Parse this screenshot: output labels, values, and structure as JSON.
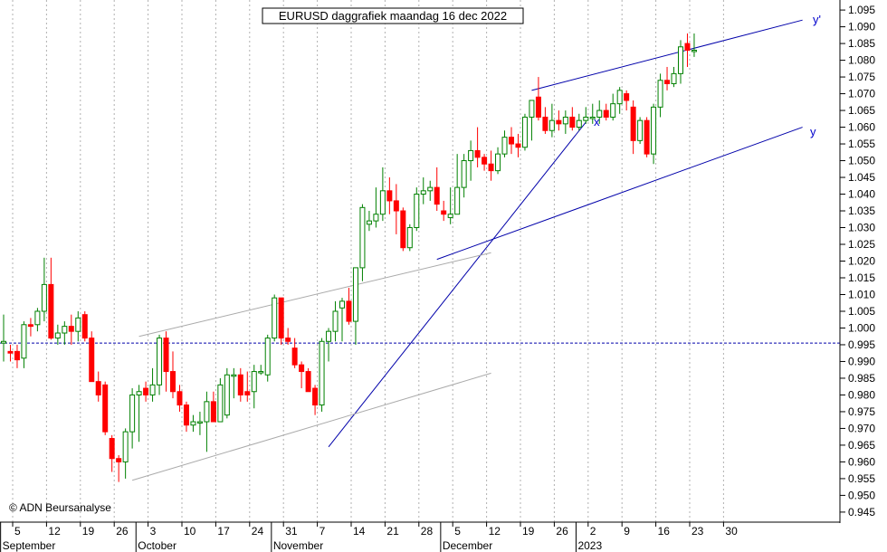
{
  "chart_data": {
    "type": "candlestick",
    "title": "EURUSD daggrafiek maandag 16 dec 2022",
    "copyright": "© ADN Beursanalyse",
    "y_axis": {
      "position": "right",
      "ylim": [
        0.942,
        1.098
      ],
      "ticks": [
        0.945,
        0.95,
        0.955,
        0.96,
        0.965,
        0.97,
        0.975,
        0.98,
        0.985,
        0.99,
        0.995,
        1.0,
        1.005,
        1.01,
        1.015,
        1.02,
        1.025,
        1.03,
        1.035,
        1.04,
        1.045,
        1.05,
        1.055,
        1.06,
        1.065,
        1.07,
        1.075,
        1.08,
        1.085,
        1.09,
        1.095
      ],
      "tick_labels": [
        "0.945",
        "0.950",
        "0.955",
        "0.960",
        "0.965",
        "0.970",
        "0.975",
        "0.980",
        "0.985",
        "0.990",
        "0.995",
        "1.000",
        "1.005",
        "1.010",
        "1.015",
        "1.020",
        "1.025",
        "1.030",
        "1.035",
        "1.040",
        "1.045",
        "1.050",
        "1.055",
        "1.060",
        "1.065",
        "1.070",
        "1.075",
        "1.080",
        "1.085",
        "1.090",
        "1.095"
      ]
    },
    "x_axis": {
      "tick_labels": [
        "5",
        "12",
        "19",
        "26",
        "3",
        "10",
        "17",
        "24",
        "31",
        "7",
        "14",
        "21",
        "28",
        "5",
        "12",
        "19",
        "26",
        "2",
        "9",
        "16",
        "23",
        "30"
      ],
      "month_labels": [
        {
          "label": "September",
          "tick": 0
        },
        {
          "label": "October",
          "tick": 4
        },
        {
          "label": "November",
          "tick": 8
        },
        {
          "label": "December",
          "tick": 13
        },
        {
          "label": "2023",
          "tick": 17
        }
      ]
    },
    "grid": {
      "vertical_dotted": true
    },
    "horizontal_level": {
      "value": 0.9955,
      "style": "dashed",
      "color": "#0000aa"
    },
    "up_color": "#ffffff",
    "up_border_color": "#008000",
    "down_color": "#ff0000",
    "candles": [
      {
        "o": 0.9955,
        "h": 1.004,
        "l": 0.99,
        "c": 0.996
      },
      {
        "o": 0.993,
        "h": 0.995,
        "l": 0.99,
        "c": 0.9925
      },
      {
        "o": 0.993,
        "h": 0.995,
        "l": 0.988,
        "c": 0.9905
      },
      {
        "o": 0.991,
        "h": 1.002,
        "l": 0.988,
        "c": 1.001
      },
      {
        "o": 1.001,
        "h": 1.003,
        "l": 0.9975,
        "c": 1.0005
      },
      {
        "o": 1.001,
        "h": 1.006,
        "l": 0.999,
        "c": 1.005
      },
      {
        "o": 1.005,
        "h": 1.021,
        "l": 1.002,
        "c": 1.013
      },
      {
        "o": 1.013,
        "h": 1.021,
        "l": 0.9965,
        "c": 0.997
      },
      {
        "o": 0.997,
        "h": 1.001,
        "l": 0.995,
        "c": 0.9985
      },
      {
        "o": 0.9985,
        "h": 1.002,
        "l": 0.995,
        "c": 1.0005
      },
      {
        "o": 1.0005,
        "h": 1.004,
        "l": 0.995,
        "c": 0.999
      },
      {
        "o": 0.999,
        "h": 1.005,
        "l": 0.996,
        "c": 1.003
      },
      {
        "o": 1.004,
        "h": 1.005,
        "l": 0.996,
        "c": 0.997
      },
      {
        "o": 0.997,
        "h": 0.999,
        "l": 0.984,
        "c": 0.984
      },
      {
        "o": 0.984,
        "h": 0.987,
        "l": 0.978,
        "c": 0.98
      },
      {
        "o": 0.983,
        "h": 0.984,
        "l": 0.968,
        "c": 0.969
      },
      {
        "o": 0.967,
        "h": 0.968,
        "l": 0.957,
        "c": 0.961
      },
      {
        "o": 0.961,
        "h": 0.962,
        "l": 0.954,
        "c": 0.96
      },
      {
        "o": 0.96,
        "h": 0.97,
        "l": 0.955,
        "c": 0.969
      },
      {
        "o": 0.969,
        "h": 0.982,
        "l": 0.964,
        "c": 0.98
      },
      {
        "o": 0.98,
        "h": 0.983,
        "l": 0.966,
        "c": 0.981
      },
      {
        "o": 0.982,
        "h": 0.984,
        "l": 0.978,
        "c": 0.98
      },
      {
        "o": 0.98,
        "h": 0.988,
        "l": 0.978,
        "c": 0.983
      },
      {
        "o": 0.983,
        "h": 0.998,
        "l": 0.98,
        "c": 0.997
      },
      {
        "o": 0.997,
        "h": 0.999,
        "l": 0.981,
        "c": 0.987
      },
      {
        "o": 0.987,
        "h": 0.993,
        "l": 0.979,
        "c": 0.981
      },
      {
        "o": 0.981,
        "h": 0.983,
        "l": 0.975,
        "c": 0.977
      },
      {
        "o": 0.977,
        "h": 0.978,
        "l": 0.969,
        "c": 0.971
      },
      {
        "o": 0.971,
        "h": 0.974,
        "l": 0.969,
        "c": 0.972
      },
      {
        "o": 0.972,
        "h": 0.975,
        "l": 0.968,
        "c": 0.972
      },
      {
        "o": 0.972,
        "h": 0.981,
        "l": 0.963,
        "c": 0.978
      },
      {
        "o": 0.978,
        "h": 0.981,
        "l": 0.972,
        "c": 0.972
      },
      {
        "o": 0.972,
        "h": 0.985,
        "l": 0.972,
        "c": 0.983
      },
      {
        "o": 0.974,
        "h": 0.988,
        "l": 0.973,
        "c": 0.986
      },
      {
        "o": 0.986,
        "h": 0.988,
        "l": 0.979,
        "c": 0.986
      },
      {
        "o": 0.986,
        "h": 0.988,
        "l": 0.978,
        "c": 0.98
      },
      {
        "o": 0.981,
        "h": 0.987,
        "l": 0.978,
        "c": 0.98
      },
      {
        "o": 0.981,
        "h": 0.989,
        "l": 0.976,
        "c": 0.987
      },
      {
        "o": 0.987,
        "h": 0.989,
        "l": 0.986,
        "c": 0.987
      },
      {
        "o": 0.986,
        "h": 0.998,
        "l": 0.984,
        "c": 0.997
      },
      {
        "o": 0.997,
        "h": 1.01,
        "l": 0.996,
        "c": 1.009
      },
      {
        "o": 1.009,
        "h": 1.009,
        "l": 0.995,
        "c": 0.997
      },
      {
        "o": 0.997,
        "h": 1.0,
        "l": 0.995,
        "c": 0.996
      },
      {
        "o": 0.994,
        "h": 0.997,
        "l": 0.988,
        "c": 0.989
      },
      {
        "o": 0.989,
        "h": 0.99,
        "l": 0.982,
        "c": 0.987
      },
      {
        "o": 0.987,
        "h": 0.988,
        "l": 0.981,
        "c": 0.981
      },
      {
        "o": 0.982,
        "h": 0.983,
        "l": 0.974,
        "c": 0.977
      },
      {
        "o": 0.977,
        "h": 0.997,
        "l": 0.975,
        "c": 0.996
      },
      {
        "o": 0.996,
        "h": 1.0,
        "l": 0.99,
        "c": 0.999
      },
      {
        "o": 0.999,
        "h": 1.008,
        "l": 0.996,
        "c": 1.005
      },
      {
        "o": 1.006,
        "h": 1.009,
        "l": 0.996,
        "c": 1.008
      },
      {
        "o": 1.008,
        "h": 1.012,
        "l": 1.001,
        "c": 1.002
      },
      {
        "o": 1.002,
        "h": 1.018,
        "l": 0.995,
        "c": 1.018
      },
      {
        "o": 1.018,
        "h": 1.037,
        "l": 1.014,
        "c": 1.036
      },
      {
        "o": 1.031,
        "h": 1.035,
        "l": 1.029,
        "c": 1.032
      },
      {
        "o": 1.032,
        "h": 1.042,
        "l": 1.03,
        "c": 1.034
      },
      {
        "o": 1.034,
        "h": 1.048,
        "l": 1.032,
        "c": 1.041
      },
      {
        "o": 1.041,
        "h": 1.045,
        "l": 1.034,
        "c": 1.038
      },
      {
        "o": 1.038,
        "h": 1.043,
        "l": 1.028,
        "c": 1.035
      },
      {
        "o": 1.035,
        "h": 1.036,
        "l": 1.023,
        "c": 1.024
      },
      {
        "o": 1.024,
        "h": 1.031,
        "l": 1.023,
        "c": 1.03
      },
      {
        "o": 1.03,
        "h": 1.042,
        "l": 1.029,
        "c": 1.04
      },
      {
        "o": 1.04,
        "h": 1.045,
        "l": 1.037,
        "c": 1.041
      },
      {
        "o": 1.041,
        "h": 1.044,
        "l": 1.038,
        "c": 1.042
      },
      {
        "o": 1.042,
        "h": 1.048,
        "l": 1.035,
        "c": 1.037
      },
      {
        "o": 1.035,
        "h": 1.038,
        "l": 1.032,
        "c": 1.034
      },
      {
        "o": 1.033,
        "h": 1.042,
        "l": 1.031,
        "c": 1.034
      },
      {
        "o": 1.034,
        "h": 1.052,
        "l": 1.034,
        "c": 1.042
      },
      {
        "o": 1.042,
        "h": 1.052,
        "l": 1.039,
        "c": 1.05
      },
      {
        "o": 1.05,
        "h": 1.056,
        "l": 1.044,
        "c": 1.053
      },
      {
        "o": 1.053,
        "h": 1.06,
        "l": 1.048,
        "c": 1.051
      },
      {
        "o": 1.051,
        "h": 1.052,
        "l": 1.047,
        "c": 1.049
      },
      {
        "o": 1.049,
        "h": 1.053,
        "l": 1.044,
        "c": 1.047
      },
      {
        "o": 1.047,
        "h": 1.054,
        "l": 1.046,
        "c": 1.052
      },
      {
        "o": 1.052,
        "h": 1.059,
        "l": 1.051,
        "c": 1.057
      },
      {
        "o": 1.057,
        "h": 1.06,
        "l": 1.052,
        "c": 1.055
      },
      {
        "o": 1.055,
        "h": 1.058,
        "l": 1.051,
        "c": 1.054
      },
      {
        "o": 1.054,
        "h": 1.064,
        "l": 1.053,
        "c": 1.063
      },
      {
        "o": 1.063,
        "h": 1.068,
        "l": 1.056,
        "c": 1.068
      },
      {
        "o": 1.069,
        "h": 1.075,
        "l": 1.062,
        "c": 1.063
      },
      {
        "o": 1.063,
        "h": 1.066,
        "l": 1.058,
        "c": 1.059
      },
      {
        "o": 1.059,
        "h": 1.067,
        "l": 1.057,
        "c": 1.062
      },
      {
        "o": 1.062,
        "h": 1.065,
        "l": 1.059,
        "c": 1.061
      },
      {
        "o": 1.061,
        "h": 1.065,
        "l": 1.058,
        "c": 1.063
      },
      {
        "o": 1.063,
        "h": 1.066,
        "l": 1.059,
        "c": 1.06
      },
      {
        "o": 1.06,
        "h": 1.064,
        "l": 1.059,
        "c": 1.062
      },
      {
        "o": 1.062,
        "h": 1.066,
        "l": 1.061,
        "c": 1.063
      },
      {
        "o": 1.063,
        "h": 1.067,
        "l": 1.061,
        "c": 1.063
      },
      {
        "o": 1.063,
        "h": 1.068,
        "l": 1.061,
        "c": 1.065
      },
      {
        "o": 1.065,
        "h": 1.067,
        "l": 1.062,
        "c": 1.063
      },
      {
        "o": 1.063,
        "h": 1.07,
        "l": 1.062,
        "c": 1.067
      },
      {
        "o": 1.067,
        "h": 1.072,
        "l": 1.064,
        "c": 1.071
      },
      {
        "o": 1.07,
        "h": 1.071,
        "l": 1.065,
        "c": 1.068
      },
      {
        "o": 1.066,
        "h": 1.068,
        "l": 1.052,
        "c": 1.056
      },
      {
        "o": 1.056,
        "h": 1.063,
        "l": 1.055,
        "c": 1.062
      },
      {
        "o": 1.062,
        "h": 1.063,
        "l": 1.051,
        "c": 1.052
      },
      {
        "o": 1.052,
        "h": 1.067,
        "l": 1.049,
        "c": 1.066
      },
      {
        "o": 1.066,
        "h": 1.076,
        "l": 1.063,
        "c": 1.074
      },
      {
        "o": 1.074,
        "h": 1.078,
        "l": 1.071,
        "c": 1.073
      },
      {
        "o": 1.073,
        "h": 1.078,
        "l": 1.072,
        "c": 1.076
      },
      {
        "o": 1.076,
        "h": 1.086,
        "l": 1.073,
        "c": 1.084
      },
      {
        "o": 1.085,
        "h": 1.088,
        "l": 1.078,
        "c": 1.083
      },
      {
        "o": 1.083,
        "h": 1.088,
        "l": 1.081,
        "c": 1.083
      }
    ],
    "annotations": [
      {
        "label": "y'"
      },
      {
        "label": "y"
      },
      {
        "label": "x"
      }
    ],
    "trend_lines": [
      {
        "name": "y-prime",
        "color": "#0000aa",
        "from": {
          "bar": 78,
          "value": 1.071
        },
        "to": {
          "bar": 118,
          "value": 1.092
        }
      },
      {
        "name": "y",
        "color": "#0000aa",
        "from": {
          "bar": 64,
          "value": 1.0205
        },
        "to": {
          "bar": 118,
          "value": 1.06
        }
      },
      {
        "name": "steep",
        "color": "#0000aa",
        "from": {
          "bar": 48,
          "value": 0.9645
        },
        "to": {
          "bar": 86,
          "value": 1.0615
        }
      },
      {
        "name": "grey-upper",
        "color": "#aaaaaa",
        "from": {
          "bar": 20,
          "value": 0.9975
        },
        "to": {
          "bar": 72,
          "value": 1.0225
        }
      },
      {
        "name": "grey-lower",
        "color": "#aaaaaa",
        "from": {
          "bar": 19,
          "value": 0.9545
        },
        "to": {
          "bar": 72,
          "value": 0.9865
        }
      }
    ]
  }
}
